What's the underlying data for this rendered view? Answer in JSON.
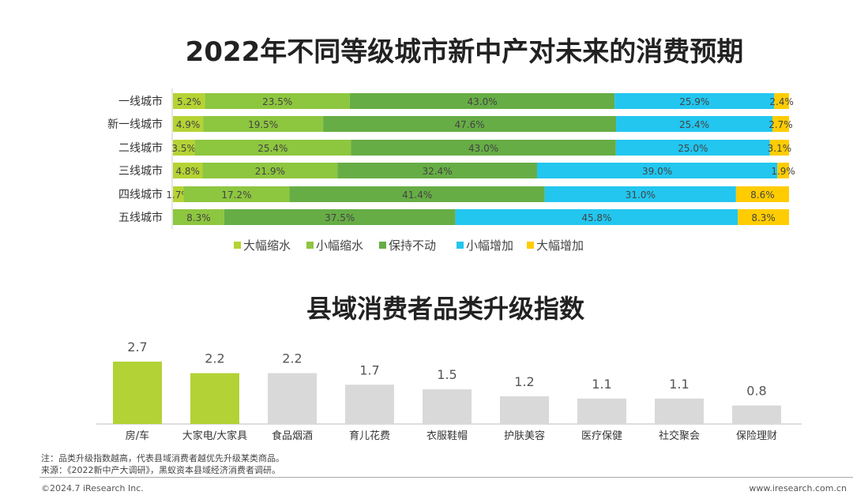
{
  "chart_data": [
    {
      "type": "bar",
      "orientation": "horizontal",
      "stacked": true,
      "title": "2022年不同等级城市新中产对未来的消费预期",
      "categories": [
        "一线城市",
        "新一线城市",
        "二线城市",
        "三线城市",
        "四线城市",
        "五线城市"
      ],
      "series": [
        {
          "name": "大幅缩水",
          "color": "#b5d334",
          "values": [
            5.2,
            4.9,
            3.5,
            4.8,
            1.7,
            0
          ]
        },
        {
          "name": "小幅缩水",
          "color": "#8dc63f",
          "values": [
            23.5,
            19.5,
            25.4,
            21.9,
            17.2,
            8.3
          ]
        },
        {
          "name": "保持不动",
          "color": "#66ad45",
          "values": [
            43.0,
            47.6,
            43.0,
            32.4,
            41.4,
            37.5
          ]
        },
        {
          "name": "小幅增加",
          "color": "#22c6ef",
          "values": [
            25.9,
            25.4,
            25.0,
            39.0,
            31.0,
            45.8
          ]
        },
        {
          "name": "大幅增加",
          "color": "#ffcc00",
          "values": [
            2.4,
            2.7,
            3.1,
            1.9,
            8.6,
            8.3
          ]
        }
      ],
      "unit": "%",
      "legend": "bottom",
      "grid": false
    },
    {
      "type": "bar",
      "title": "县域消费者品类升级指数",
      "categories": [
        "房/车",
        "大家电/大家具",
        "食品烟酒",
        "育儿花费",
        "衣服鞋帽",
        "护肤美容",
        "医疗保健",
        "社交聚会",
        "保险理财"
      ],
      "values": [
        2.7,
        2.2,
        2.2,
        1.7,
        1.5,
        1.2,
        1.1,
        1.1,
        0.8
      ],
      "highlight_color": "#b2d235",
      "base_color": "#d9d9d9",
      "highlighted": [
        0,
        1
      ],
      "ylim": [
        0,
        2.7
      ],
      "grid": false
    }
  ],
  "notes": {
    "note": "注：品类升级指数越高，代表县域消费者越优先升级某类商品。",
    "source": "来源：《2022新中产大调研》，黑蚁资本县域经济消费者调研。"
  },
  "footer": {
    "copyright": "©2024.7 iResearch Inc.",
    "url": "www.iresearch.com.cn"
  }
}
